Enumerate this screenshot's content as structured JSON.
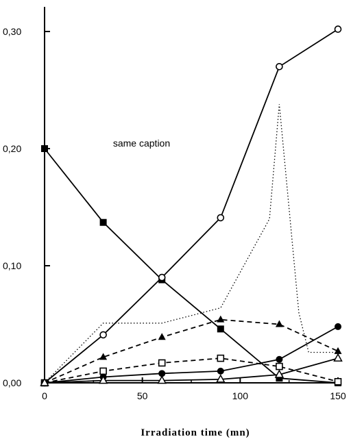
{
  "chart_data": {
    "type": "line",
    "title": "",
    "xlabel": "Irradiation time (mn)",
    "ylabel": "",
    "xlim": [
      0,
      150
    ],
    "ylim": [
      0,
      0.32
    ],
    "x_ticks": [
      0,
      50,
      100,
      150
    ],
    "x_tick_labels": [
      "0",
      "50",
      "100",
      "150"
    ],
    "y_ticks": [
      0,
      0.1,
      0.2,
      0.3
    ],
    "y_tick_labels": [
      "0,00",
      "0,10",
      "0,20",
      "0,30"
    ],
    "grid": false,
    "legend": "none",
    "annotations": [
      {
        "text": "same caption",
        "x": 35,
        "y": 0.2
      }
    ],
    "series": [
      {
        "marker": "filled-square",
        "line": "solid",
        "x": [
          0,
          30,
          60,
          90,
          120,
          150
        ],
        "y": [
          0.2,
          0.137,
          0.088,
          0.046,
          0.004,
          0.0
        ]
      },
      {
        "marker": "open-circle",
        "line": "solid",
        "x": [
          0,
          30,
          60,
          90,
          120,
          150
        ],
        "y": [
          0.0,
          0.041,
          0.09,
          0.141,
          0.27,
          0.302
        ]
      },
      {
        "marker": "none",
        "line": "dotted",
        "x": [
          0,
          30,
          60,
          90,
          115,
          120,
          130,
          135,
          150
        ],
        "y": [
          0.0,
          0.051,
          0.051,
          0.064,
          0.14,
          0.238,
          0.06,
          0.026,
          0.026
        ]
      },
      {
        "marker": "filled-triangle",
        "line": "dashed",
        "x": [
          0,
          30,
          60,
          90,
          120,
          150
        ],
        "y": [
          0.0,
          0.022,
          0.039,
          0.054,
          0.05,
          0.027
        ]
      },
      {
        "marker": "open-square",
        "line": "dashed",
        "x": [
          0,
          30,
          60,
          90,
          120,
          150
        ],
        "y": [
          0.0,
          0.01,
          0.017,
          0.021,
          0.014,
          0.001
        ]
      },
      {
        "marker": "filled-circle",
        "line": "solid",
        "x": [
          0,
          30,
          60,
          90,
          120,
          150
        ],
        "y": [
          0.0,
          0.005,
          0.008,
          0.01,
          0.02,
          0.048
        ]
      },
      {
        "marker": "open-triangle",
        "line": "solid",
        "x": [
          0,
          30,
          60,
          90,
          120,
          150
        ],
        "y": [
          0.0,
          0.002,
          0.002,
          0.003,
          0.007,
          0.021
        ]
      }
    ]
  }
}
